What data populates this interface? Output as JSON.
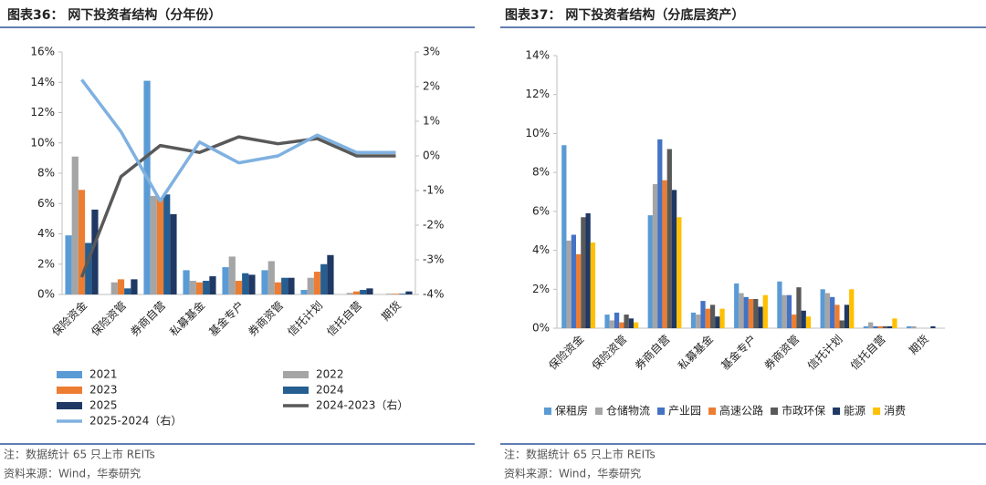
{
  "chart_data": [
    {
      "type": "bar",
      "title": "图表36： 网下投资者结构（分年份）",
      "categories": [
        "保险资金",
        "保险资管",
        "券商自营",
        "私募基金",
        "基金专户",
        "券商资管",
        "信托计划",
        "信托自营",
        "期货"
      ],
      "series": [
        {
          "name": "2021",
          "color": "#5b9bd5",
          "values": [
            3.9,
            0.0,
            14.1,
            1.6,
            1.8,
            1.6,
            0.3,
            0.0,
            0.0
          ]
        },
        {
          "name": "2022",
          "color": "#a5a5a5",
          "values": [
            9.1,
            0.8,
            6.5,
            0.9,
            2.5,
            2.2,
            1.1,
            0.1,
            0.05
          ]
        },
        {
          "name": "2023",
          "color": "#ed7d31",
          "values": [
            6.9,
            1.0,
            6.3,
            0.8,
            0.9,
            0.8,
            1.5,
            0.2,
            0.05
          ]
        },
        {
          "name": "2024",
          "color": "#255e91",
          "values": [
            3.4,
            0.4,
            6.6,
            0.9,
            1.4,
            1.1,
            2.0,
            0.3,
            0.05
          ]
        },
        {
          "name": "2025",
          "color": "#1f3864",
          "values": [
            5.6,
            1.0,
            5.3,
            1.2,
            1.3,
            1.1,
            2.6,
            0.4,
            0.2
          ]
        },
        {
          "name": "2024-2023（右）",
          "color": "#595959",
          "type": "line",
          "axis": "y2",
          "values": [
            -3.5,
            -0.6,
            0.3,
            0.1,
            0.55,
            0.35,
            0.5,
            0.0,
            0.0
          ]
        },
        {
          "name": "2025-2024（右）",
          "color": "#7fb1e0",
          "type": "line",
          "axis": "y2",
          "values": [
            2.2,
            0.7,
            -1.3,
            0.4,
            -0.2,
            0.0,
            0.6,
            0.1,
            0.1
          ]
        }
      ],
      "ylim": [
        0,
        16
      ],
      "yticks": [
        {
          "value": 0,
          "label": "0%"
        },
        {
          "value": 2,
          "label": "2%"
        },
        {
          "value": 4,
          "label": "4%"
        },
        {
          "value": 6,
          "label": "6%"
        },
        {
          "value": 8,
          "label": "8%"
        },
        {
          "value": 10,
          "label": "10%"
        },
        {
          "value": 12,
          "label": "12%"
        },
        {
          "value": 14,
          "label": "14%"
        },
        {
          "value": 16,
          "label": "16%"
        }
      ],
      "y2lim": [
        -4,
        3
      ],
      "y2ticks": [
        {
          "value": -4,
          "label": "-4%"
        },
        {
          "value": -3,
          "label": "-3%"
        },
        {
          "value": -2,
          "label": "-2%"
        },
        {
          "value": -1,
          "label": "-1%"
        },
        {
          "value": 0,
          "label": "0%"
        },
        {
          "value": 1,
          "label": "1%"
        },
        {
          "value": 2,
          "label": "2%"
        },
        {
          "value": 3,
          "label": "3%"
        }
      ],
      "legend": "bottom",
      "note": "注：数据统计 65 只上市 REITs",
      "source": "资料来源：Wind，华泰研究"
    },
    {
      "type": "bar",
      "title": "图表37： 网下投资者结构（分底层资产）",
      "categories": [
        "保险资金",
        "保险资管",
        "券商自营",
        "私募基金",
        "基金专户",
        "券商资管",
        "信托计划",
        "信托自营",
        "期货"
      ],
      "series": [
        {
          "name": "保租房",
          "color": "#5b9bd5",
          "values": [
            9.4,
            0.7,
            5.8,
            0.8,
            2.3,
            2.4,
            2.0,
            0.1,
            0.1
          ]
        },
        {
          "name": "仓储物流",
          "color": "#a5a5a5",
          "values": [
            4.5,
            0.4,
            7.4,
            0.7,
            1.8,
            1.7,
            1.8,
            0.3,
            0.1
          ]
        },
        {
          "name": "产业园",
          "color": "#4472c4",
          "values": [
            4.8,
            0.8,
            9.7,
            1.4,
            1.6,
            1.7,
            1.6,
            0.1,
            0.0
          ]
        },
        {
          "name": "高速公路",
          "color": "#ed7d31",
          "values": [
            3.8,
            0.3,
            7.6,
            1.0,
            1.5,
            0.7,
            1.2,
            0.1,
            0.0
          ]
        },
        {
          "name": "市政环保",
          "color": "#595959",
          "values": [
            5.7,
            0.7,
            9.2,
            1.2,
            1.5,
            2.1,
            0.4,
            0.1,
            0.0
          ]
        },
        {
          "name": "能源",
          "color": "#1f3864",
          "values": [
            5.9,
            0.5,
            7.1,
            0.6,
            1.1,
            0.9,
            1.2,
            0.1,
            0.1
          ]
        },
        {
          "name": "消费",
          "color": "#ffc000",
          "values": [
            4.4,
            0.3,
            5.7,
            1.0,
            1.7,
            0.6,
            2.0,
            0.5,
            0.0
          ]
        }
      ],
      "ylim": [
        0,
        14
      ],
      "yticks": [
        {
          "value": 0,
          "label": "0%"
        },
        {
          "value": 2,
          "label": "2%"
        },
        {
          "value": 4,
          "label": "4%"
        },
        {
          "value": 6,
          "label": "6%"
        },
        {
          "value": 8,
          "label": "8%"
        },
        {
          "value": 10,
          "label": "10%"
        },
        {
          "value": 12,
          "label": "12%"
        },
        {
          "value": 14,
          "label": "14%"
        }
      ],
      "legend": "bottom",
      "note": "注：数据统计 65 只上市 REITs",
      "source": "资料来源：Wind，华泰研究"
    }
  ]
}
